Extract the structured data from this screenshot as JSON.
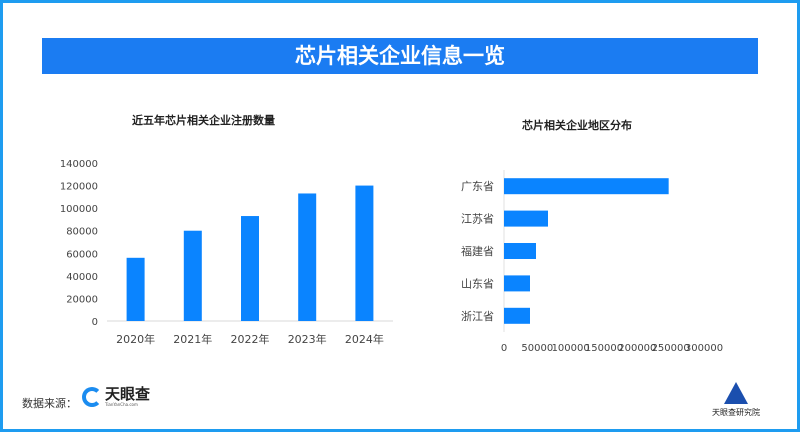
{
  "header": {
    "title": "芯片相关企业信息一览"
  },
  "footer": {
    "source_label": "数据来源：",
    "source_logo": "天眼查",
    "source_logo_sub": "TianYanCha.com",
    "institute": "天眼查研究院"
  },
  "colors": {
    "bar": "#0a84ff",
    "banner": "#1b7cf2",
    "frame": "#1e9cf0"
  },
  "chart_data": [
    {
      "type": "bar",
      "title": "近五年芯片相关企业注册数量",
      "categories": [
        "2020年",
        "2021年",
        "2022年",
        "2023年",
        "2024年"
      ],
      "values": [
        56000,
        80000,
        93000,
        113000,
        120000
      ],
      "ylim": [
        0,
        140000
      ],
      "yticks": [
        "0",
        "20000",
        "40000",
        "60000",
        "80000",
        "100000",
        "120000",
        "140000"
      ],
      "grid": false
    },
    {
      "type": "bar",
      "orientation": "horizontal",
      "title": "芯片相关企业地区分布",
      "categories": [
        "广东省",
        "江苏省",
        "福建省",
        "山东省",
        "浙江省"
      ],
      "values": [
        247000,
        66000,
        48000,
        39000,
        39000
      ],
      "xlim": [
        0,
        300000
      ],
      "xticks": [
        "0",
        "50000",
        "100000",
        "150000",
        "200000",
        "250000",
        "300000"
      ],
      "grid": false
    }
  ]
}
